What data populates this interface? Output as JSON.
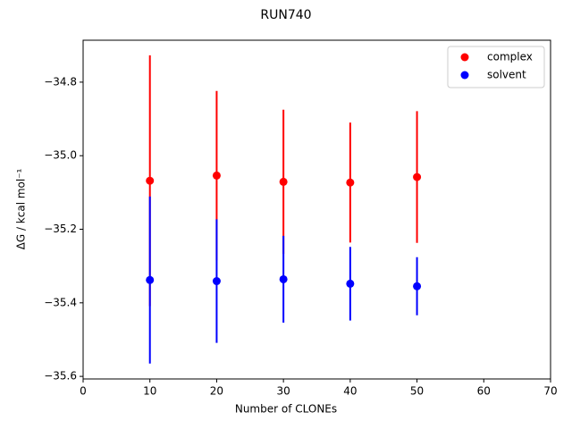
{
  "chart_data": {
    "type": "errorbar-scatter",
    "title": "RUN740",
    "xlabel": "Number of CLONEs",
    "ylabel": "ΔG / kcal mol⁻¹",
    "xlim": [
      0,
      70
    ],
    "xticks": [
      0,
      10,
      20,
      30,
      40,
      50,
      60,
      70
    ],
    "ylim": [
      -35.607,
      -34.686
    ],
    "yticks": [
      {
        "value": -35.6,
        "label": "−35.6"
      },
      {
        "value": -35.4,
        "label": "−35.4"
      },
      {
        "value": -35.2,
        "label": "−35.2"
      },
      {
        "value": -35.0,
        "label": "−35.0"
      },
      {
        "value": -34.8,
        "label": "−34.8"
      }
    ],
    "legend": "upper right",
    "series": [
      {
        "name": "complex",
        "color": "#ff0000",
        "x": [
          10,
          20,
          30,
          40,
          50
        ],
        "values": [
          -35.068,
          -35.054,
          -35.071,
          -35.073,
          -35.058
        ],
        "errors": [
          0.341,
          0.23,
          0.196,
          0.163,
          0.179
        ]
      },
      {
        "name": "solvent",
        "color": "#0000ff",
        "x": [
          10,
          20,
          30,
          40,
          50
        ],
        "values": [
          -35.338,
          -35.341,
          -35.336,
          -35.348,
          -35.355
        ],
        "errors": [
          0.227,
          0.168,
          0.118,
          0.1,
          0.079
        ]
      }
    ]
  }
}
